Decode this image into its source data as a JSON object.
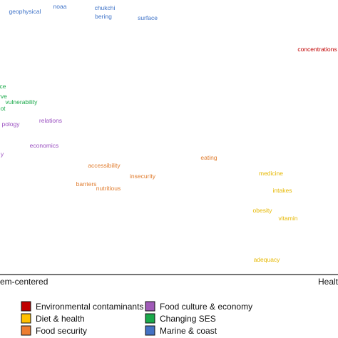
{
  "chart_data": {
    "type": "scatter",
    "title": "",
    "xlabel": "",
    "ylabel": "",
    "axis_ends": {
      "left": "em-centered",
      "right": "Healt"
    },
    "xlim": [
      0,
      474
    ],
    "ylim": [
      0,
      385
    ],
    "series": [
      {
        "name": "Environmental contaminants",
        "color": "#c00000",
        "points": [
          {
            "label": "concentrations",
            "x": 445,
            "y": 313
          }
        ]
      },
      {
        "name": "Diet & health",
        "color": "#e6b800",
        "points": [
          {
            "label": "medicine",
            "x": 380,
            "y": 139
          },
          {
            "label": "intakes",
            "x": 396,
            "y": 115
          },
          {
            "label": "obesity",
            "x": 368,
            "y": 87
          },
          {
            "label": "vitamin",
            "x": 404,
            "y": 76
          },
          {
            "label": "adequacy",
            "x": 374,
            "y": 18
          }
        ]
      },
      {
        "name": "Food security",
        "color": "#e07c2e",
        "points": [
          {
            "label": "eating",
            "x": 293,
            "y": 161
          },
          {
            "label": "accessibility",
            "x": 146,
            "y": 150
          },
          {
            "label": "insecurity",
            "x": 200,
            "y": 135
          },
          {
            "label": "barriers",
            "x": 121,
            "y": 124
          },
          {
            "label": "nutritious",
            "x": 152,
            "y": 118
          }
        ]
      },
      {
        "name": "Food culture & economy",
        "color": "#9a4fc0",
        "points": [
          {
            "label": "relations",
            "x": 71,
            "y": 213
          },
          {
            "label": "pology",
            "x": 15,
            "y": 208
          },
          {
            "label": "economics",
            "x": 62,
            "y": 178
          },
          {
            "label": "y",
            "x": 3,
            "y": 166
          }
        ]
      },
      {
        "name": "Changing SES",
        "color": "#1aa94a",
        "points": [
          {
            "label": "vulnerability",
            "x": 30,
            "y": 239
          },
          {
            "label": "ce",
            "x": 4,
            "y": 261
          },
          {
            "label": "rve",
            "x": 4,
            "y": 247
          },
          {
            "label": "ot",
            "x": 4,
            "y": 230
          }
        ]
      },
      {
        "name": "Marine & coast",
        "color": "#3f73c8",
        "points": [
          {
            "label": "geophysical",
            "x": 35,
            "y": 366
          },
          {
            "label": "noaa",
            "x": 84,
            "y": 373
          },
          {
            "label": "chukchi",
            "x": 147,
            "y": 371
          },
          {
            "label": "bering",
            "x": 145,
            "y": 359
          },
          {
            "label": "surface",
            "x": 207,
            "y": 357
          }
        ]
      }
    ],
    "legend": {
      "placement": "bottom-left",
      "entries": [
        {
          "label": "Environmental contaminants",
          "color": "#c00000"
        },
        {
          "label": "Diet & health",
          "color": "#ffc000"
        },
        {
          "label": "Food security",
          "color": "#ed7d31"
        },
        {
          "label": "Food culture & economy",
          "color": "#a05ab8"
        },
        {
          "label": "Changing SES",
          "color": "#1aa94a"
        },
        {
          "label": "Marine & coast",
          "color": "#4472c4"
        }
      ]
    }
  }
}
